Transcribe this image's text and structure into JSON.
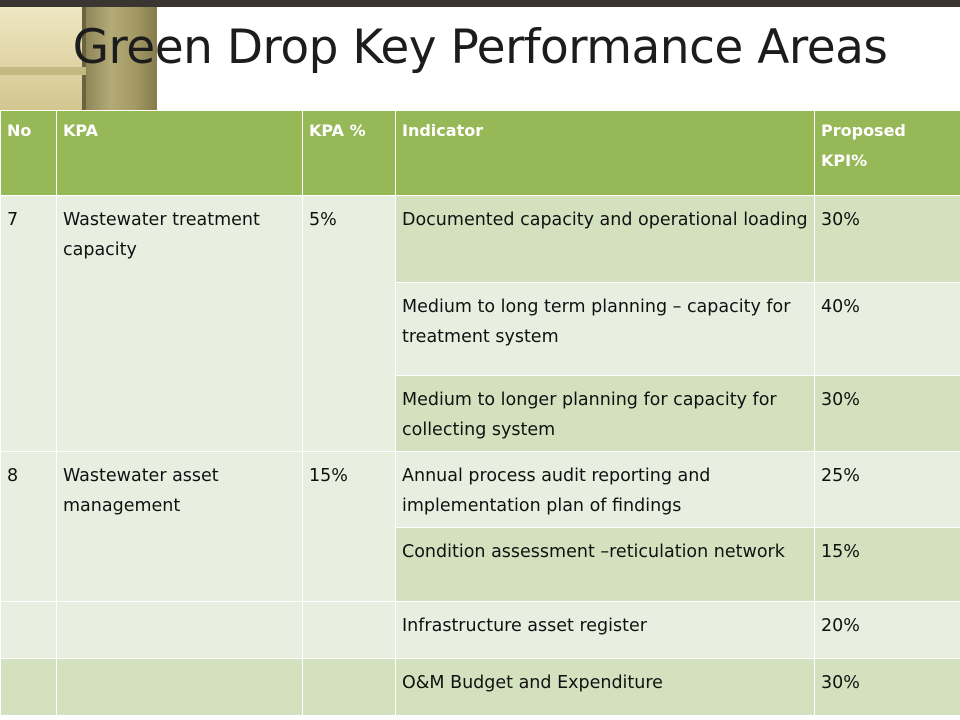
{
  "slide": {
    "title": "Green Drop Key Performance Areas"
  },
  "table": {
    "headers": {
      "no": "No",
      "kpa": "KPA",
      "kpa_pct": "KPA %",
      "indicator": "Indicator",
      "proposed_kpi": "Proposed KPI%"
    },
    "groups": [
      {
        "no": "7",
        "kpa": "Wastewater treatment capacity",
        "kpa_pct": "5%",
        "rows": [
          {
            "indicator": "Documented capacity and operational loading",
            "proposed_kpi": "30%"
          },
          {
            "indicator": "Medium to long term planning – capacity for treatment system",
            "proposed_kpi": "40%"
          },
          {
            "indicator": "Medium to longer planning for capacity for collecting system",
            "proposed_kpi": "30%"
          }
        ]
      },
      {
        "no": "8",
        "kpa": "Wastewater asset management",
        "kpa_pct": "15%",
        "rows": [
          {
            "indicator": "Annual process audit reporting and implementation plan of findings",
            "proposed_kpi": "25%"
          },
          {
            "indicator": "Condition assessment –reticulation network",
            "proposed_kpi": "15%"
          }
        ]
      },
      {
        "no": "",
        "kpa": "",
        "kpa_pct": "",
        "rows": [
          {
            "indicator": "Infrastructure asset register",
            "proposed_kpi": "20%"
          }
        ]
      },
      {
        "no": "",
        "kpa": "",
        "kpa_pct": "",
        "rows": [
          {
            "indicator": "O&M Budget and Expenditure",
            "proposed_kpi": "30%"
          }
        ]
      }
    ]
  }
}
